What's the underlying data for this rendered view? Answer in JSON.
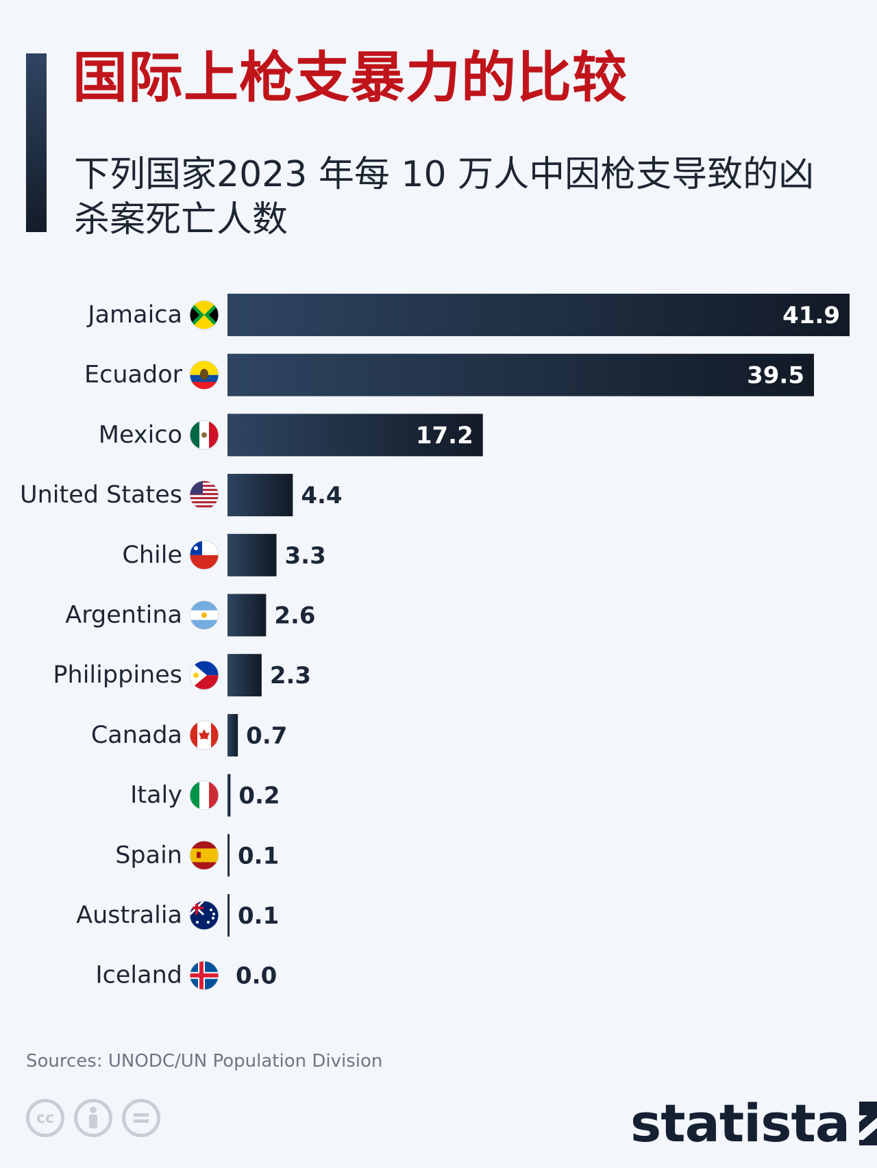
{
  "header": {
    "title": "国际上枪支暴力的比较",
    "subtitle": "下列国家2023 年每 10 万人中因枪支导致的凶杀案死亡人数"
  },
  "footer": {
    "source": "Sources: UNODC/UN Population Division",
    "logo": "statista"
  },
  "chart_data": {
    "type": "bar",
    "orientation": "horizontal",
    "title": "国际上枪支暴力的比较",
    "subtitle": "下列国家2023 年每 10 万人中因枪支导致的凶杀案死亡人数",
    "categories": [
      "Jamaica",
      "Ecuador",
      "Mexico",
      "United States",
      "Chile",
      "Argentina",
      "Philippines",
      "Canada",
      "Italy",
      "Spain",
      "Australia",
      "Iceland"
    ],
    "values": [
      41.9,
      39.5,
      17.2,
      4.4,
      3.3,
      2.6,
      2.3,
      0.7,
      0.2,
      0.1,
      0.1,
      0.0
    ],
    "value_labels": [
      "41.9",
      "39.5",
      "17.2",
      "4.4",
      "3.3",
      "2.6",
      "2.3",
      "0.7",
      "0.2",
      "0.1",
      "0.1",
      "0.0"
    ],
    "xlim": [
      0,
      41.9
    ],
    "grid": false,
    "bar_color_start": "#2e4561",
    "bar_color_end": "#121a26"
  },
  "flags": [
    "jamaica-flag-icon",
    "ecuador-flag-icon",
    "mexico-flag-icon",
    "usa-flag-icon",
    "chile-flag-icon",
    "argentina-flag-icon",
    "philippines-flag-icon",
    "canada-flag-icon",
    "italy-flag-icon",
    "spain-flag-icon",
    "australia-flag-icon",
    "iceland-flag-icon"
  ]
}
